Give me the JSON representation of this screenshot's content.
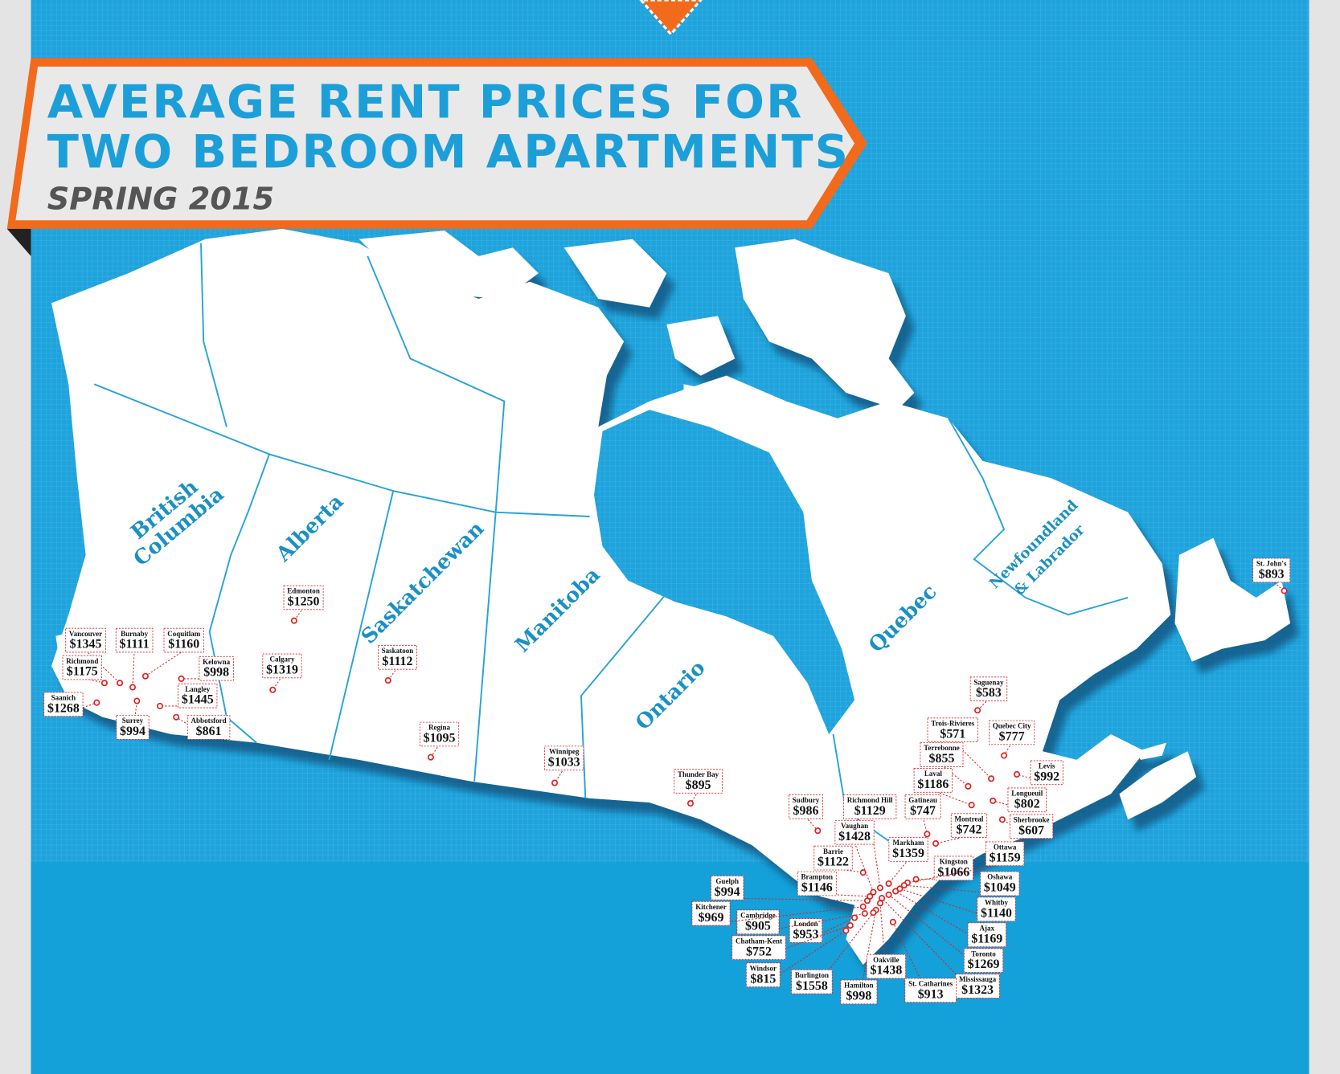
{
  "header": {
    "title_line1": "AVERAGE RENT PRICES FOR",
    "title_line2": "TWO BEDROOM APARTMENTS",
    "subtitle": "SPRING 2015"
  },
  "provinces": [
    {
      "lines": [
        "British",
        "Columbia"
      ]
    },
    {
      "lines": [
        "Alberta"
      ]
    },
    {
      "lines": [
        "Saskatchewan"
      ]
    },
    {
      "lines": [
        "Manitoba"
      ]
    },
    {
      "lines": [
        "Ontario"
      ]
    },
    {
      "lines": [
        "Quebec"
      ]
    },
    {
      "lines": [
        "Newfoundland",
        "& Labrador"
      ]
    }
  ],
  "cities": [
    {
      "name": "Vancouver",
      "rent": "$1345"
    },
    {
      "name": "Burnaby",
      "rent": "$1111"
    },
    {
      "name": "Coquitlam",
      "rent": "$1160"
    },
    {
      "name": "Richmond",
      "rent": "$1175"
    },
    {
      "name": "Kelowna",
      "rent": "$998"
    },
    {
      "name": "Langley",
      "rent": "$1445"
    },
    {
      "name": "Saanich",
      "rent": "$1268"
    },
    {
      "name": "Surrey",
      "rent": "$994"
    },
    {
      "name": "Abbotsford",
      "rent": "$861"
    },
    {
      "name": "Edmonton",
      "rent": "$1250"
    },
    {
      "name": "Calgary",
      "rent": "$1319"
    },
    {
      "name": "Saskatoon",
      "rent": "$1112"
    },
    {
      "name": "Regina",
      "rent": "$1095"
    },
    {
      "name": "Winnipeg",
      "rent": "$1033"
    },
    {
      "name": "Thunder Bay",
      "rent": "$895"
    },
    {
      "name": "Sudbury",
      "rent": "$986"
    },
    {
      "name": "Richmond Hill",
      "rent": "$1129"
    },
    {
      "name": "Vaughan",
      "rent": "$1428"
    },
    {
      "name": "Barrie",
      "rent": "$1122"
    },
    {
      "name": "Gatineau",
      "rent": "$747"
    },
    {
      "name": "Markham",
      "rent": "$1359"
    },
    {
      "name": "Montreal",
      "rent": "$742"
    },
    {
      "name": "Kingston",
      "rent": "$1066"
    },
    {
      "name": "Ottawa",
      "rent": "$1159"
    },
    {
      "name": "Oshawa",
      "rent": "$1049"
    },
    {
      "name": "Whitby",
      "rent": "$1140"
    },
    {
      "name": "Ajax",
      "rent": "$1169"
    },
    {
      "name": "Toronto",
      "rent": "$1269"
    },
    {
      "name": "Mississauga",
      "rent": "$1323"
    },
    {
      "name": "St. Catharines",
      "rent": "$913"
    },
    {
      "name": "Hamilton",
      "rent": "$998"
    },
    {
      "name": "Oakville",
      "rent": "$1438"
    },
    {
      "name": "Burlington",
      "rent": "$1558"
    },
    {
      "name": "Windsor",
      "rent": "$815"
    },
    {
      "name": "London",
      "rent": "$953"
    },
    {
      "name": "Chatham-Kent",
      "rent": "$752"
    },
    {
      "name": "Cambridge",
      "rent": "$905"
    },
    {
      "name": "Kitchener",
      "rent": "$969"
    },
    {
      "name": "Guelph",
      "rent": "$994"
    },
    {
      "name": "Brampton",
      "rent": "$1146"
    },
    {
      "name": "Saguenay",
      "rent": "$583"
    },
    {
      "name": "Trois-Rivieres",
      "rent": "$571"
    },
    {
      "name": "Quebec City",
      "rent": "$777"
    },
    {
      "name": "Terrebonne",
      "rent": "$855"
    },
    {
      "name": "Laval",
      "rent": "$1186"
    },
    {
      "name": "Levis",
      "rent": "$992"
    },
    {
      "name": "Longueuil",
      "rent": "$802"
    },
    {
      "name": "Sherbrooke",
      "rent": "$607"
    },
    {
      "name": "St. John's",
      "rent": "$893"
    }
  ]
}
